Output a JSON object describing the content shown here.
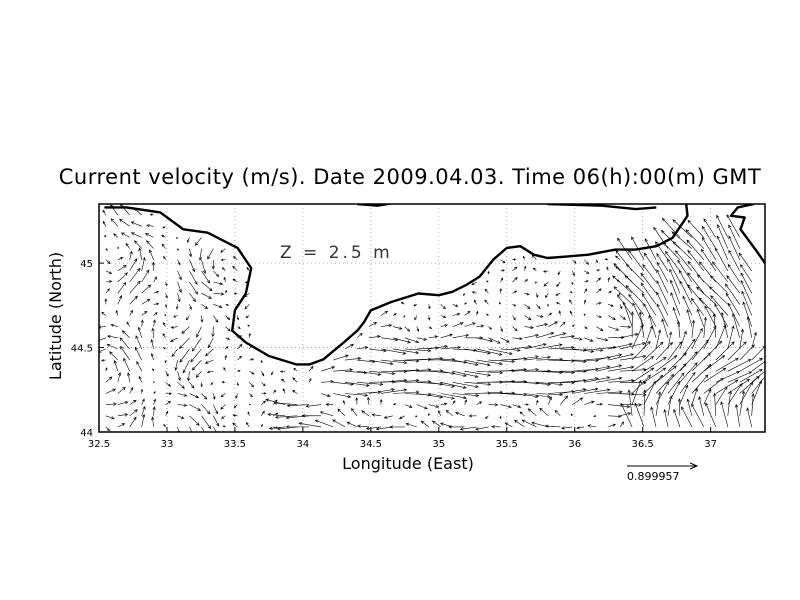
{
  "title": "Current velocity (m/s). Date 2009.04.03. Time 06(h):00(m) GMT",
  "depth_label": "Z = 2.5 m",
  "chart_data": {
    "type": "vector-field",
    "xlabel": "Longitude (East)",
    "ylabel": "Latitude (North)",
    "xlim": [
      32.5,
      37.4
    ],
    "ylim": [
      44.0,
      45.35
    ],
    "x_ticks": [
      "32.5",
      "33",
      "33.5",
      "34",
      "34.5",
      "35",
      "35.5",
      "36",
      "36.5",
      "37"
    ],
    "x_tick_values": [
      32.5,
      33,
      33.5,
      34,
      34.5,
      35,
      35.5,
      36,
      36.5,
      37
    ],
    "y_ticks": [
      "44",
      "44.5",
      "45"
    ],
    "y_tick_values": [
      44,
      44.5,
      45
    ],
    "grid": "dotted",
    "reference_vector": "0.899957",
    "coastline_crimea": [
      [
        32.54,
        45.33
      ],
      [
        32.7,
        45.33
      ],
      [
        32.95,
        45.3
      ],
      [
        33.12,
        45.2
      ],
      [
        33.3,
        45.18
      ],
      [
        33.52,
        45.09
      ],
      [
        33.62,
        44.97
      ],
      [
        33.58,
        44.82
      ],
      [
        33.5,
        44.72
      ],
      [
        33.48,
        44.6
      ],
      [
        33.58,
        44.53
      ],
      [
        33.75,
        44.45
      ],
      [
        33.95,
        44.4
      ],
      [
        34.05,
        44.4
      ],
      [
        34.15,
        44.43
      ],
      [
        34.3,
        44.53
      ],
      [
        34.4,
        44.6
      ],
      [
        34.45,
        44.65
      ],
      [
        34.5,
        44.72
      ],
      [
        34.65,
        44.77
      ],
      [
        34.85,
        44.82
      ],
      [
        35.0,
        44.81
      ],
      [
        35.1,
        44.83
      ],
      [
        35.2,
        44.87
      ],
      [
        35.3,
        44.92
      ],
      [
        35.4,
        45.02
      ],
      [
        35.5,
        45.09
      ],
      [
        35.6,
        45.1
      ],
      [
        35.7,
        45.05
      ],
      [
        35.8,
        45.03
      ],
      [
        35.95,
        45.04
      ],
      [
        36.1,
        45.05
      ],
      [
        36.3,
        45.08
      ],
      [
        36.45,
        45.08
      ],
      [
        36.6,
        45.1
      ],
      [
        36.72,
        45.15
      ],
      [
        36.83,
        45.28
      ],
      [
        36.82,
        45.35
      ]
    ],
    "coastline_north": [
      [
        34.4,
        45.35
      ],
      [
        34.55,
        45.34
      ],
      [
        34.7,
        45.36
      ]
    ],
    "coastline_kerch": [
      [
        37.4,
        45.0
      ],
      [
        37.33,
        45.08
      ],
      [
        37.22,
        45.2
      ],
      [
        37.25,
        45.27
      ],
      [
        37.15,
        45.28
      ],
      [
        37.2,
        45.33
      ],
      [
        37.32,
        45.35
      ]
    ],
    "coastline_taman": [
      [
        35.8,
        45.35
      ],
      [
        36.2,
        45.34
      ],
      [
        36.45,
        45.32
      ],
      [
        36.6,
        45.33
      ]
    ]
  }
}
